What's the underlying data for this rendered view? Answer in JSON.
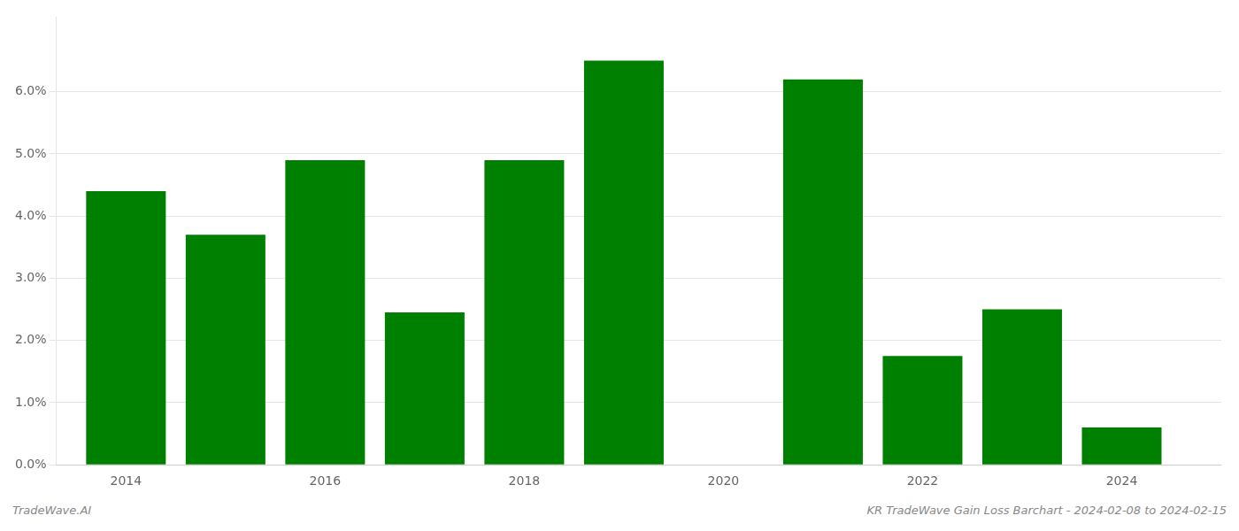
{
  "chart_data": {
    "type": "bar",
    "title": "KR TradeWave Gain Loss Barchart - 2024-02-08 to 2024-02-15",
    "annotations": [
      "TradeWave.AI"
    ],
    "x": [
      2014,
      2015,
      2016,
      2017,
      2018,
      2019,
      2021,
      2022,
      2023,
      2024
    ],
    "values": [
      0.044,
      0.037,
      0.049,
      0.0245,
      0.049,
      0.065,
      0.062,
      0.0175,
      0.025,
      0.006
    ],
    "color": "#008000",
    "xlim": [
      2013.3,
      2025.0
    ],
    "xticks": [
      2014,
      2016,
      2018,
      2020,
      2022,
      2024
    ],
    "ylim": [
      0,
      0.072
    ],
    "yticks": [
      {
        "value": 0.0,
        "label": "0.0%"
      },
      {
        "value": 0.01,
        "label": "1.0%"
      },
      {
        "value": 0.02,
        "label": "2.0%"
      },
      {
        "value": 0.03,
        "label": "3.0%"
      },
      {
        "value": 0.04,
        "label": "4.0%"
      },
      {
        "value": 0.05,
        "label": "5.0%"
      },
      {
        "value": 0.06,
        "label": "6.0%"
      }
    ],
    "grid": true
  }
}
